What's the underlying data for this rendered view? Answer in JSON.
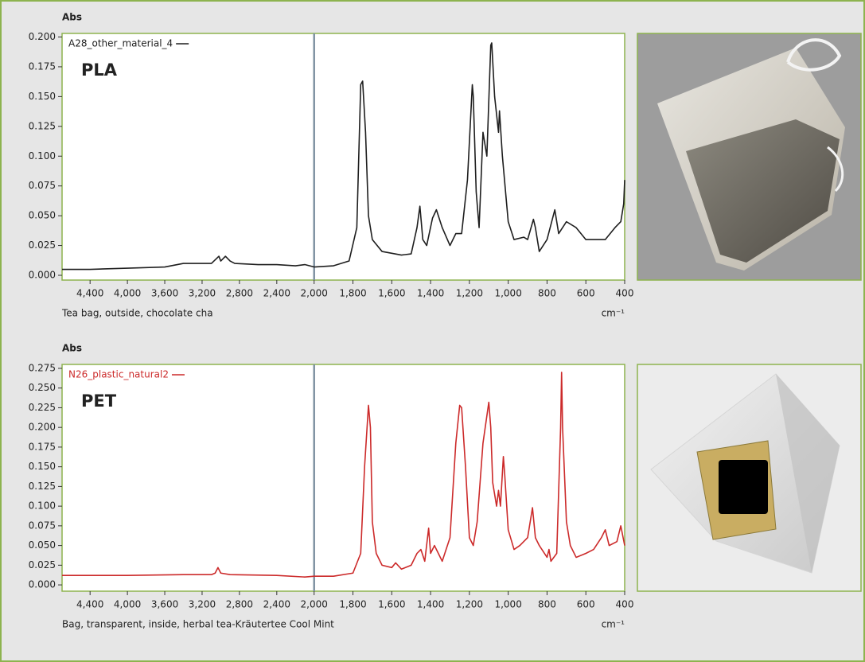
{
  "chart_data": [
    {
      "type": "line",
      "y_label": "Abs",
      "annotation": "PLA",
      "caption": "Tea bag, outside, chocolate cha",
      "x_unit": "cm⁻¹",
      "xlim": [
        4700,
        400
      ],
      "x_break": 2000,
      "ylim": [
        -0.004,
        0.203
      ],
      "xticks": [
        {
          "value": 4400,
          "label": "4,400"
        },
        {
          "value": 4000,
          "label": "4,000"
        },
        {
          "value": 3600,
          "label": "3,600"
        },
        {
          "value": 3200,
          "label": "3,200"
        },
        {
          "value": 2800,
          "label": "2,800"
        },
        {
          "value": 2400,
          "label": "2,400"
        },
        {
          "value": 2000,
          "label": "2,000"
        },
        {
          "value": 1800,
          "label": "1,800"
        },
        {
          "value": 1600,
          "label": "1,600"
        },
        {
          "value": 1400,
          "label": "1,400"
        },
        {
          "value": 1200,
          "label": "1,200"
        },
        {
          "value": 1000,
          "label": "1,000"
        },
        800,
        600,
        400
      ],
      "yticks": [
        {
          "value": 0,
          "label": "0.000"
        },
        {
          "value": 0.025,
          "label": "0.025"
        },
        {
          "value": 0.05,
          "label": "0.050"
        },
        {
          "value": 0.075,
          "label": "0.075"
        },
        {
          "value": 0.1,
          "label": "0.100"
        },
        {
          "value": 0.125,
          "label": "0.125"
        },
        {
          "value": 0.15,
          "label": "0.150"
        },
        {
          "value": 0.175,
          "label": "0.175"
        },
        {
          "value": 0.2,
          "label": "0.200"
        }
      ],
      "series": [
        {
          "name": "A28_other_material_4",
          "color": "#1e1e1e",
          "x": [
            4700,
            4400,
            4000,
            3600,
            3400,
            3200,
            3100,
            3020,
            3000,
            2950,
            2900,
            2850,
            2600,
            2400,
            2200,
            2100,
            2000,
            1900,
            1820,
            1780,
            1760,
            1750,
            1735,
            1720,
            1700,
            1650,
            1550,
            1500,
            1470,
            1455,
            1440,
            1420,
            1390,
            1370,
            1360,
            1340,
            1300,
            1270,
            1240,
            1210,
            1185,
            1180,
            1165,
            1150,
            1130,
            1110,
            1090,
            1085,
            1070,
            1050,
            1045,
            1030,
            1000,
            970,
            920,
            900,
            870,
            860,
            840,
            800,
            760,
            740,
            700,
            650,
            600,
            500,
            450,
            420,
            405,
            400
          ],
          "values": [
            0.005,
            0.005,
            0.006,
            0.007,
            0.01,
            0.01,
            0.01,
            0.016,
            0.012,
            0.016,
            0.012,
            0.01,
            0.009,
            0.009,
            0.008,
            0.009,
            0.007,
            0.008,
            0.012,
            0.04,
            0.16,
            0.163,
            0.12,
            0.05,
            0.03,
            0.02,
            0.017,
            0.018,
            0.04,
            0.058,
            0.03,
            0.025,
            0.048,
            0.055,
            0.05,
            0.04,
            0.025,
            0.035,
            0.035,
            0.08,
            0.16,
            0.15,
            0.07,
            0.04,
            0.12,
            0.1,
            0.193,
            0.195,
            0.15,
            0.12,
            0.138,
            0.1,
            0.045,
            0.03,
            0.032,
            0.03,
            0.047,
            0.04,
            0.02,
            0.03,
            0.055,
            0.035,
            0.045,
            0.04,
            0.03,
            0.03,
            0.04,
            0.045,
            0.06,
            0.08
          ]
        }
      ]
    },
    {
      "type": "line",
      "y_label": "Abs",
      "annotation": "PET",
      "caption": "Bag, transparent, inside, herbal tea-Kräutertee Cool Mint",
      "x_unit": "cm⁻¹",
      "xlim": [
        4700,
        400
      ],
      "x_break": 2000,
      "ylim": [
        -0.008,
        0.28
      ],
      "xticks": [
        {
          "value": 4400,
          "label": "4,400"
        },
        {
          "value": 4000,
          "label": "4,000"
        },
        {
          "value": 3600,
          "label": "3,600"
        },
        {
          "value": 3200,
          "label": "3,200"
        },
        {
          "value": 2800,
          "label": "2,800"
        },
        {
          "value": 2400,
          "label": "2,400"
        },
        {
          "value": 2000,
          "label": "2,000"
        },
        {
          "value": 1800,
          "label": "1,800"
        },
        {
          "value": 1600,
          "label": "1,600"
        },
        {
          "value": 1400,
          "label": "1,400"
        },
        {
          "value": 1200,
          "label": "1,200"
        },
        {
          "value": 1000,
          "label": "1,000"
        },
        800,
        600,
        400
      ],
      "yticks": [
        {
          "value": 0,
          "label": "0.000"
        },
        {
          "value": 0.025,
          "label": "0.025"
        },
        {
          "value": 0.05,
          "label": "0.050"
        },
        {
          "value": 0.075,
          "label": "0.075"
        },
        {
          "value": 0.1,
          "label": "0.100"
        },
        {
          "value": 0.125,
          "label": "0.125"
        },
        {
          "value": 0.15,
          "label": "0.150"
        },
        {
          "value": 0.175,
          "label": "0.175"
        },
        {
          "value": 0.2,
          "label": "0.200"
        },
        {
          "value": 0.225,
          "label": "0.225"
        },
        {
          "value": 0.25,
          "label": "0.250"
        },
        {
          "value": 0.275,
          "label": "0.275"
        }
      ],
      "series": [
        {
          "name": "N26_plastic_natural2",
          "color": "#cc2a2a",
          "x": [
            4700,
            4000,
            3400,
            3100,
            3060,
            3030,
            3000,
            2900,
            2400,
            2100,
            2000,
            1900,
            1800,
            1760,
            1740,
            1720,
            1710,
            1700,
            1680,
            1650,
            1600,
            1580,
            1550,
            1500,
            1470,
            1450,
            1430,
            1410,
            1400,
            1380,
            1340,
            1300,
            1270,
            1250,
            1240,
            1220,
            1200,
            1180,
            1160,
            1130,
            1100,
            1090,
            1080,
            1060,
            1050,
            1040,
            1025,
            1018,
            1000,
            970,
            940,
            900,
            875,
            860,
            840,
            800,
            790,
            780,
            750,
            730,
            725,
            720,
            700,
            680,
            650,
            600,
            560,
            520,
            500,
            480,
            440,
            420,
            400
          ],
          "values": [
            0.012,
            0.012,
            0.013,
            0.013,
            0.015,
            0.022,
            0.015,
            0.013,
            0.012,
            0.01,
            0.011,
            0.011,
            0.015,
            0.04,
            0.15,
            0.228,
            0.2,
            0.08,
            0.04,
            0.025,
            0.022,
            0.028,
            0.02,
            0.025,
            0.04,
            0.045,
            0.03,
            0.072,
            0.04,
            0.05,
            0.03,
            0.06,
            0.18,
            0.228,
            0.225,
            0.15,
            0.06,
            0.05,
            0.08,
            0.18,
            0.232,
            0.2,
            0.13,
            0.1,
            0.12,
            0.1,
            0.163,
            0.14,
            0.07,
            0.045,
            0.05,
            0.06,
            0.098,
            0.06,
            0.05,
            0.035,
            0.045,
            0.03,
            0.04,
            0.2,
            0.27,
            0.2,
            0.08,
            0.05,
            0.035,
            0.04,
            0.045,
            0.06,
            0.07,
            0.05,
            0.055,
            0.075,
            0.05
          ]
        }
      ]
    }
  ]
}
